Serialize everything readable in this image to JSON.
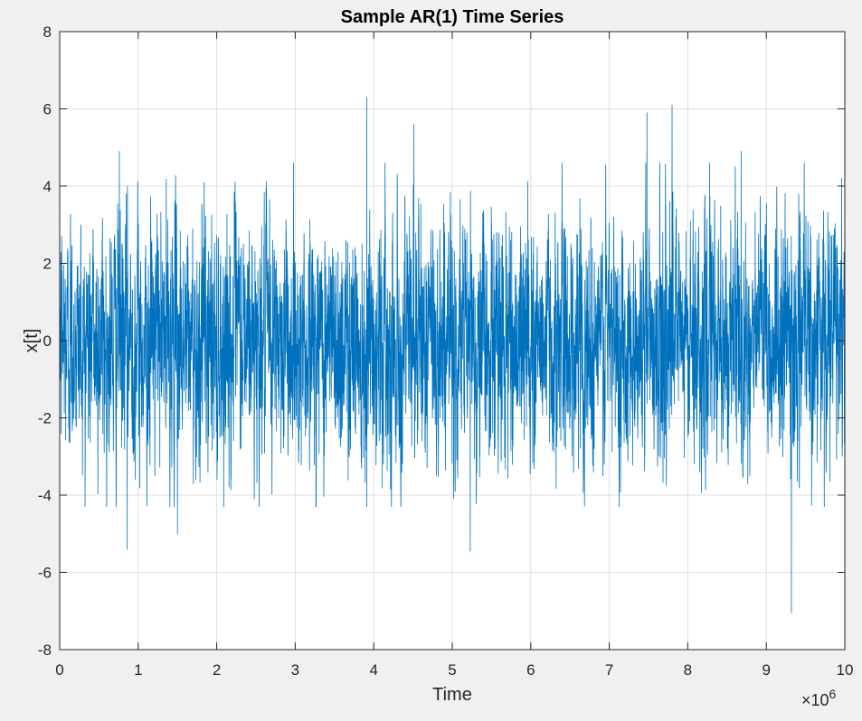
{
  "chart_data": {
    "type": "line",
    "title": "Sample AR(1) Time Series",
    "xlabel": "Time",
    "ylabel": "x[t]",
    "x_multiplier_label": "×10",
    "x_multiplier_exponent": "6",
    "xlim": [
      0,
      10
    ],
    "ylim": [
      -8,
      8
    ],
    "x_ticks": [
      0,
      1,
      2,
      3,
      4,
      5,
      6,
      7,
      8,
      9,
      10
    ],
    "y_ticks": [
      8,
      6,
      4,
      2,
      0,
      -2,
      -4,
      -6,
      -8
    ],
    "grid": true,
    "series_color": "#0072BD",
    "series": [
      {
        "values_note_free": true,
        "x_range": [
          0,
          10
        ],
        "std_estimate": 1.5,
        "extremes": [
          {
            "x": 0.86,
            "y": -5.4
          },
          {
            "x": 1.5,
            "y": -5.0
          },
          {
            "x": 3.91,
            "y": 6.3
          },
          {
            "x": 4.51,
            "y": 5.6
          },
          {
            "x": 5.23,
            "y": -5.45
          },
          {
            "x": 7.8,
            "y": 6.1
          },
          {
            "x": 7.48,
            "y": 5.9
          },
          {
            "x": 9.32,
            "y": -7.05
          },
          {
            "x": 0.76,
            "y": 4.9
          },
          {
            "x": 8.68,
            "y": 4.9
          }
        ]
      }
    ]
  },
  "colors": {
    "figure_background": "#f0f0f0",
    "axes_background": "#ffffff",
    "grid": "#dfdfdf",
    "axis": "#262626"
  }
}
